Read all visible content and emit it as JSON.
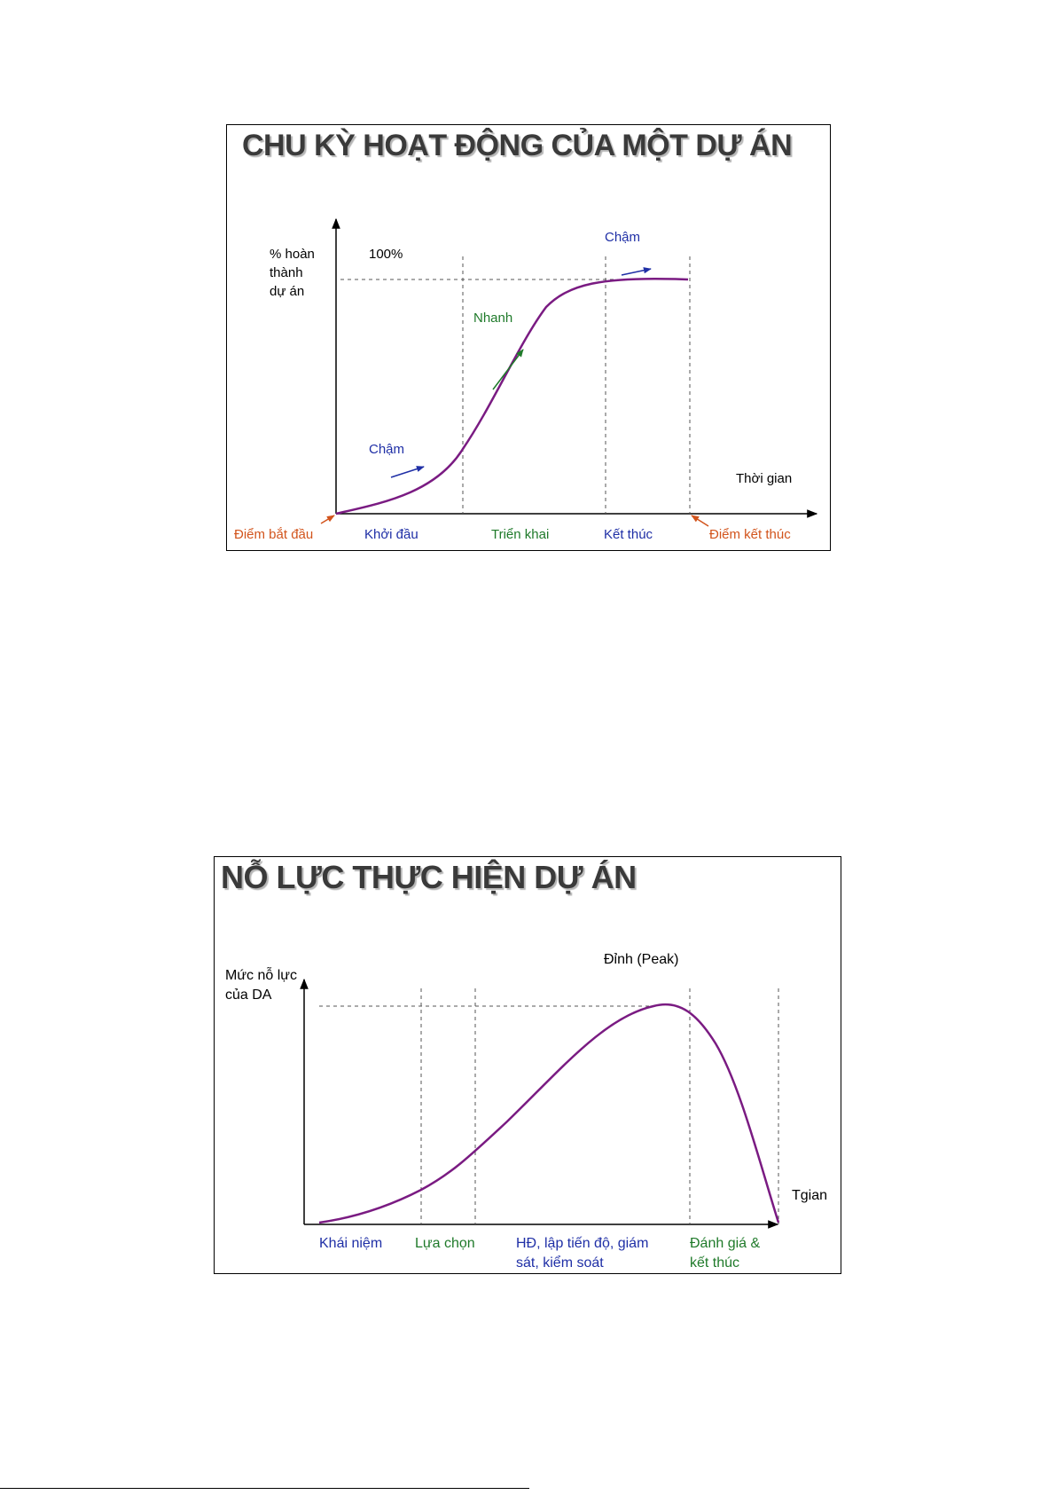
{
  "colors": {
    "curve": "#7a1b82",
    "orange": "#d2541c",
    "blue": "#1f2fa6",
    "green": "#1f7a2a",
    "axis": "#000000",
    "dashed": "#555555"
  },
  "diagram1": {
    "title": "CHU KỲ HOẠT ĐỘNG CỦA MỘT DỰ ÁN",
    "y_axis_label": [
      "% hoàn",
      "thành",
      "dự án"
    ],
    "y_max_label": "100%",
    "x_axis_label": "Thời gian",
    "start_point": "Điểm bắt đầu",
    "end_point": "Điểm kết thúc",
    "phases": [
      "Khởi đầu",
      "Triển khai",
      "Kết thúc"
    ],
    "speed_labels": {
      "early": "Chậm",
      "middle": "Nhanh",
      "late": "Chậm"
    }
  },
  "diagram2": {
    "title": "NỖ LỰC THỰC HIỆN DỰ ÁN",
    "y_axis_label": [
      "Mức nỗ lực",
      "của DA"
    ],
    "x_axis_label": "Tgian",
    "peak_label": "Đỉnh (Peak)",
    "phases": [
      [
        "Khái niệm"
      ],
      [
        "Lựa chọn"
      ],
      [
        "HĐ, lập tiến độ, giám",
        "sát, kiểm soát"
      ],
      [
        "Đánh giá &",
        "kết thúc"
      ]
    ]
  }
}
